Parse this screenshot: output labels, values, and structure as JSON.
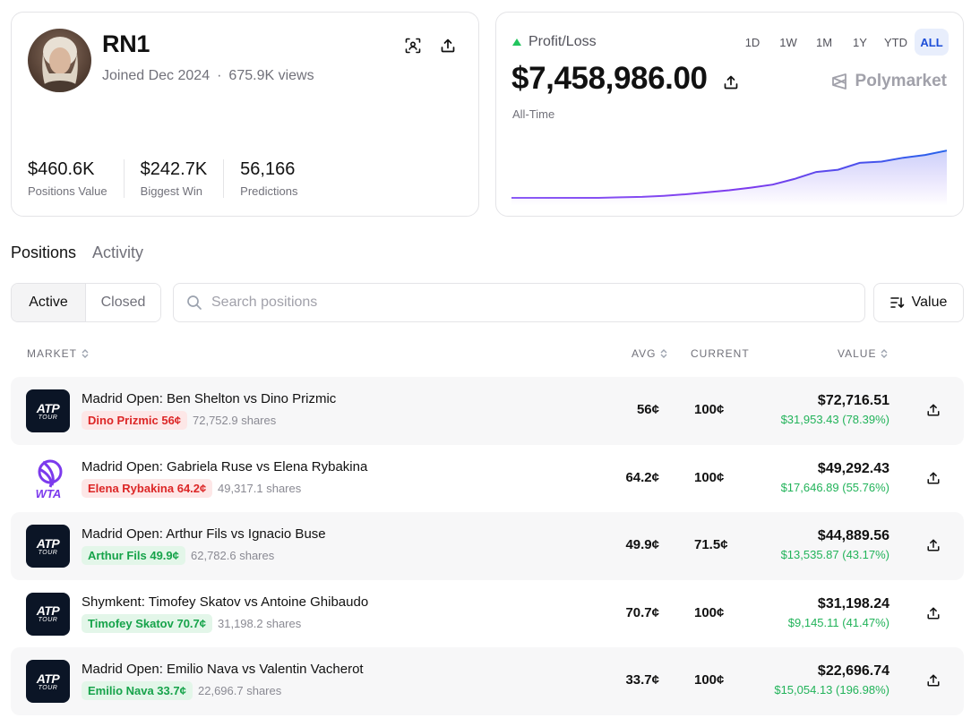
{
  "profile": {
    "username": "RN1",
    "joined": "Joined Dec 2024",
    "views": "675.9K views",
    "stats": [
      {
        "value": "$460.6K",
        "label": "Positions Value"
      },
      {
        "value": "$242.7K",
        "label": "Biggest Win"
      },
      {
        "value": "56,166",
        "label": "Predictions"
      }
    ]
  },
  "pnl": {
    "label": "Profit/Loss",
    "amount": "$7,458,986.00",
    "period": "All-Time",
    "brand": "Polymarket",
    "ranges": [
      "1D",
      "1W",
      "1M",
      "1Y",
      "YTD",
      "ALL"
    ],
    "active_range": "ALL",
    "colors": {
      "line_start": "#8b5cf6",
      "line_end": "#2563eb",
      "up": "#22c55e"
    }
  },
  "chart_data": {
    "type": "area",
    "x": [
      0,
      5,
      10,
      15,
      20,
      25,
      30,
      35,
      40,
      45,
      50,
      55,
      60,
      65,
      70,
      75,
      80,
      85,
      90,
      95,
      100
    ],
    "values": [
      0.0,
      0.0,
      0.0,
      0.0,
      0.0,
      0.01,
      0.02,
      0.04,
      0.07,
      0.11,
      0.15,
      0.2,
      0.26,
      0.37,
      0.48,
      0.55,
      0.66,
      0.71,
      0.76,
      0.84,
      0.9
    ],
    "title": "",
    "xlabel": "",
    "ylabel": "",
    "grid": false
  },
  "tabs": [
    "Positions",
    "Activity"
  ],
  "filters": {
    "active": "Active",
    "closed": "Closed"
  },
  "search": {
    "placeholder": "Search positions"
  },
  "sort": {
    "label": "Value"
  },
  "columns": {
    "market": "MARKET",
    "avg": "AVG",
    "current": "CURRENT",
    "value": "VALUE"
  },
  "positions": [
    {
      "logo": "ATP",
      "logo_sub": "TOUR",
      "title": "Madrid Open: Ben Shelton vs Dino Prizmic",
      "outcome": "Dino Prizmic 56¢",
      "outcome_color": "red",
      "shares": "72,752.9 shares",
      "avg": "56¢",
      "current": "100¢",
      "value": "$72,716.51",
      "pnl": "$31,953.43 (78.39%)"
    },
    {
      "logo": "WTA",
      "logo_sub": "",
      "title": "Madrid Open: Gabriela Ruse vs Elena Rybakina",
      "outcome": "Elena Rybakina 64.2¢",
      "outcome_color": "red",
      "shares": "49,317.1 shares",
      "avg": "64.2¢",
      "current": "100¢",
      "value": "$49,292.43",
      "pnl": "$17,646.89 (55.76%)"
    },
    {
      "logo": "ATP",
      "logo_sub": "TOUR",
      "title": "Madrid Open: Arthur Fils vs Ignacio Buse",
      "outcome": "Arthur Fils 49.9¢",
      "outcome_color": "green",
      "shares": "62,782.6 shares",
      "avg": "49.9¢",
      "current": "71.5¢",
      "value": "$44,889.56",
      "pnl": "$13,535.87 (43.17%)"
    },
    {
      "logo": "ATP",
      "logo_sub": "TOUR",
      "title": "Shymkent: Timofey Skatov vs Antoine Ghibaudo",
      "outcome": "Timofey Skatov 70.7¢",
      "outcome_color": "green",
      "shares": "31,198.2 shares",
      "avg": "70.7¢",
      "current": "100¢",
      "value": "$31,198.24",
      "pnl": "$9,145.11 (41.47%)"
    },
    {
      "logo": "ATP",
      "logo_sub": "TOUR",
      "title": "Madrid Open: Emilio Nava vs Valentin Vacherot",
      "outcome": "Emilio Nava 33.7¢",
      "outcome_color": "green",
      "shares": "22,696.7 shares",
      "avg": "33.7¢",
      "current": "100¢",
      "value": "$22,696.74",
      "pnl": "$15,054.13 (196.98%)"
    }
  ]
}
